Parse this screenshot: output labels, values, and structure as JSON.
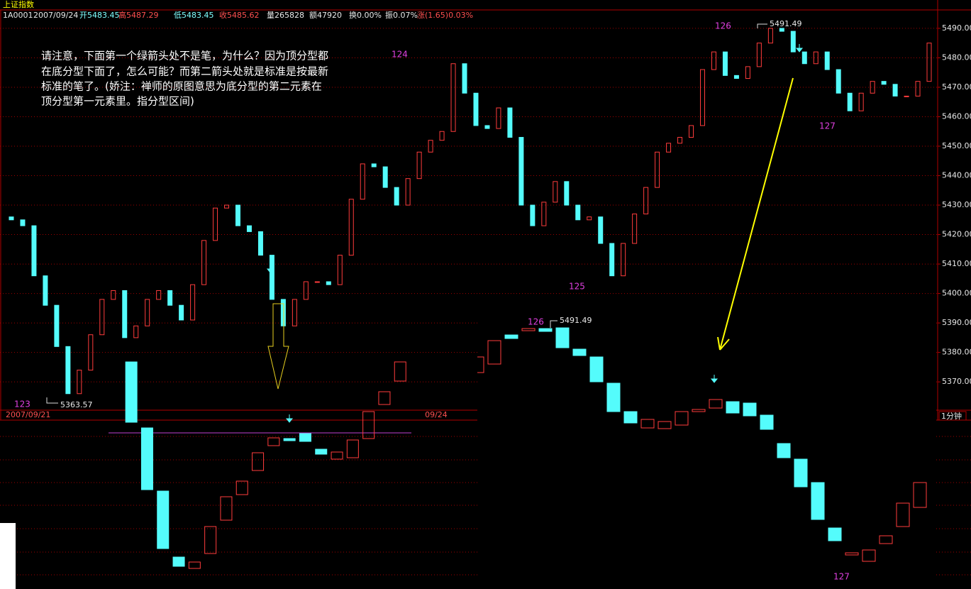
{
  "header": {
    "title": "上证指数",
    "code": "1A0001",
    "date": "2007/09/24",
    "fields": [
      "开5483.45",
      "高5487.29",
      "低5483.45",
      "收5485.62",
      "量265828",
      "额47920",
      "换0.00%",
      "振0.07%",
      "涨(1.65)0.03%"
    ]
  },
  "chart_data": [
    {
      "type": "candlestick",
      "categories": [
        "2007/09/21",
        null,
        null,
        null,
        null,
        null,
        null,
        null,
        null,
        null,
        null,
        null,
        null,
        null,
        null,
        null,
        null,
        null,
        null,
        null,
        null,
        null,
        null,
        null,
        null,
        null,
        null,
        null,
        null,
        null,
        null,
        null,
        null,
        null,
        null,
        null,
        null,
        "09/24",
        null,
        null,
        null,
        null,
        null,
        null,
        null,
        null,
        null,
        null,
        null,
        null,
        null,
        null,
        null,
        null,
        null,
        null,
        null,
        null,
        null,
        null,
        null,
        null,
        null,
        null,
        null,
        null,
        null,
        null,
        null,
        null,
        null,
        null,
        null,
        null,
        null,
        null,
        null,
        null,
        null,
        null,
        null,
        null
      ],
      "open": [
        5426,
        5425,
        5423,
        5406,
        5396,
        5382,
        5366,
        5374,
        5386,
        5398,
        5401,
        5385,
        5389,
        5398,
        5401,
        5396,
        5391,
        5403,
        5418,
        5429,
        5430,
        5423,
        5421,
        5413,
        5398,
        5389,
        5398,
        5404,
        5404,
        5403,
        5413,
        5432,
        5444,
        5443,
        5436,
        5430,
        5439,
        5448,
        5452,
        5455,
        5478,
        5468,
        5457,
        5456,
        5463,
        5453,
        5430,
        5423,
        5431,
        5438,
        5430,
        5425,
        5426,
        5417,
        5406,
        5417,
        5427,
        5436,
        5448,
        5451,
        5453,
        5457,
        5476,
        5482,
        5474,
        5473,
        5477,
        5485,
        5490,
        5489,
        5482,
        5478,
        5482,
        5476,
        5468,
        5462,
        5468,
        5472,
        5471,
        5467,
        5467,
        5472
      ],
      "close": [
        5425,
        5423,
        5406,
        5396,
        5382,
        5366,
        5374,
        5386,
        5398,
        5401,
        5385,
        5389,
        5398,
        5401,
        5396,
        5391,
        5403,
        5418,
        5429,
        5430,
        5423,
        5421,
        5413,
        5398,
        5389,
        5398,
        5404,
        5404,
        5403,
        5413,
        5432,
        5444,
        5443,
        5436,
        5430,
        5439,
        5448,
        5452,
        5455,
        5478,
        5468,
        5457,
        5456,
        5463,
        5453,
        5430,
        5423,
        5431,
        5438,
        5430,
        5425,
        5426,
        5417,
        5406,
        5417,
        5427,
        5436,
        5448,
        5451,
        5453,
        5457,
        5476,
        5482,
        5474,
        5473,
        5477,
        5485,
        5490,
        5489,
        5482,
        5478,
        5482,
        5476,
        5468,
        5462,
        5468,
        5472,
        5471,
        5467,
        5467,
        5472,
        5485
      ],
      "up_color": "#ff3c3c",
      "down_color": "#54fcfc",
      "ylim": [
        5360.4,
        5494.8
      ],
      "yticks": [
        {
          "value": 5370,
          "label": "5370.00"
        },
        {
          "value": 5380,
          "label": "5380.00"
        },
        {
          "value": 5390,
          "label": "5390.00"
        },
        {
          "value": 5400,
          "label": "5400.00"
        },
        {
          "value": 5410,
          "label": "5410.00"
        },
        {
          "value": 5420,
          "label": "5420.00"
        },
        {
          "value": 5430,
          "label": "5430.00"
        },
        {
          "value": 5440,
          "label": "5440.00"
        },
        {
          "value": 5450,
          "label": "5450.00"
        },
        {
          "value": 5460,
          "label": "5460.00"
        },
        {
          "value": 5470,
          "label": "5470.00"
        },
        {
          "value": 5480,
          "label": "5480.00"
        },
        {
          "value": 5490,
          "label": "5490.00"
        }
      ],
      "grid": true,
      "period": "1分钟",
      "annotations": [
        "123",
        "124",
        "125",
        "126",
        "127",
        "5363.57",
        "5491.49"
      ],
      "note": [
        "请注意，下面第一个绿箭头处不是笔，为什么？因为顶分型都",
        "在底分型下面了，怎么可能？而第二箭头处就是标准是按最新",
        "标准的笔了。(娇注：禅师的原图意思为底分型的第二元素在",
        "顶分型第一元素里。指分型区间)"
      ]
    },
    {
      "type": "candlestick",
      "open": [
        320,
        227,
        138,
        45,
        29,
        50,
        97,
        133,
        167,
        202,
        212,
        219,
        197,
        183,
        185,
        212,
        260,
        293
      ],
      "close": [
        235,
        140,
        57,
        32,
        38,
        88,
        130,
        152,
        192,
        213,
        209,
        208,
        190,
        193,
        210,
        250,
        278,
        320
      ],
      "up_color": "#ff3c3c",
      "down_color": "#54fcfc",
      "ylim": [
        0,
        330
      ],
      "reference_line": 220,
      "reference_color": "#c040d0"
    },
    {
      "type": "candlestick",
      "open": [
        305,
        317,
        358,
        364,
        367,
        368,
        338,
        327,
        290,
        250,
        227,
        226,
        231,
        250,
        255,
        264,
        262,
        245,
        205,
        183,
        150,
        86,
        48,
        39,
        64,
        88,
        115
      ],
      "close": [
        327,
        350,
        353,
        367,
        363,
        340,
        329,
        292,
        250,
        234,
        239,
        236,
        250,
        253,
        267,
        248,
        244,
        225,
        185,
        144,
        98,
        68,
        51,
        55,
        75,
        121,
        150
      ],
      "up_color": "#ff3c3c",
      "down_color": "#54fcfc",
      "ylim": [
        0,
        390
      ],
      "annotations": [
        "126",
        "5491.49",
        "127"
      ]
    }
  ]
}
